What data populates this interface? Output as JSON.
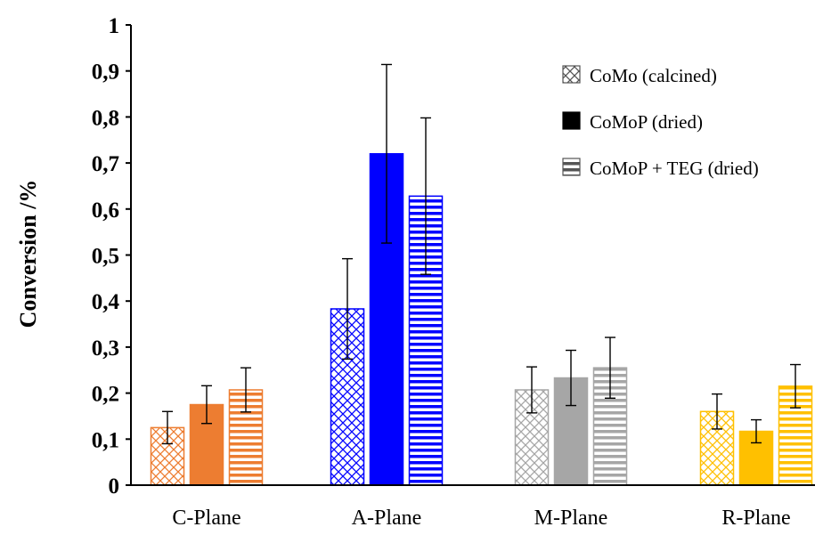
{
  "chart_data": {
    "type": "bar",
    "categories": [
      "C-Plane",
      "A-Plane",
      "M-Plane",
      "R-Plane"
    ],
    "category_colors": [
      "#ED7D31",
      "#0000FF",
      "#A6A6A6",
      "#FFC000"
    ],
    "series": [
      {
        "name": "CoMo (calcined)",
        "pattern": "crosshatch",
        "values": [
          0.125,
          0.383,
          0.207,
          0.16
        ],
        "errors": [
          0.035,
          0.109,
          0.05,
          0.038
        ]
      },
      {
        "name": "CoMoP (dried)",
        "pattern": "solid",
        "values": [
          0.175,
          0.72,
          0.233,
          0.117
        ],
        "errors": [
          0.041,
          0.194,
          0.06,
          0.025
        ]
      },
      {
        "name": "CoMoP + TEG (dried)",
        "pattern": "horizontal-lines",
        "values": [
          0.207,
          0.628,
          0.255,
          0.215
        ],
        "errors": [
          0.048,
          0.17,
          0.066,
          0.047
        ]
      }
    ],
    "ylabel": "Conversion /%",
    "xlabel": "",
    "ylim": [
      0,
      1
    ],
    "yticks": [
      "0",
      "0,1",
      "0,2",
      "0,3",
      "0,4",
      "0,5",
      "0,6",
      "0,7",
      "0,8",
      "0,9",
      "1"
    ],
    "legend_position": "top-right",
    "grid": false
  }
}
